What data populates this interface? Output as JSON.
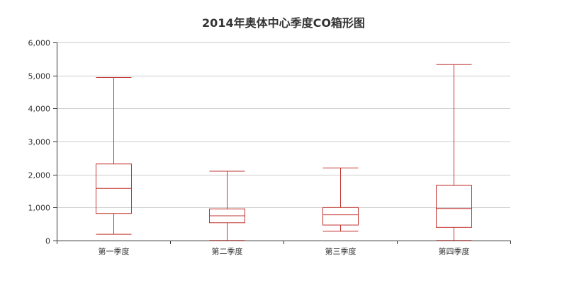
{
  "chart_data": {
    "type": "boxplot",
    "title": "2014年奥体中心季度CO箱形图",
    "categories": [
      "第一季度",
      "第二季度",
      "第三季度",
      "第四季度"
    ],
    "series": [
      {
        "values": [
          {
            "min": 190,
            "q1": 820,
            "median": 1580,
            "q3": 2320,
            "max": 4940
          },
          {
            "min": 0,
            "q1": 540,
            "median": 750,
            "q3": 960,
            "max": 2100
          },
          {
            "min": 280,
            "q1": 470,
            "median": 780,
            "q3": 1000,
            "max": 2200
          },
          {
            "min": 0,
            "q1": 400,
            "median": 970,
            "q3": 1670,
            "max": 5330
          }
        ]
      }
    ],
    "ylim": [
      0,
      6000
    ],
    "yticks": [
      0,
      1000,
      2000,
      3000,
      4000,
      5000,
      6000
    ],
    "ytick_labels": [
      "0",
      "1,000",
      "2,000",
      "3,000",
      "4,000",
      "5,000",
      "6,000"
    ],
    "grid": true,
    "box_color": "#c23531",
    "xlabel": "",
    "ylabel": ""
  }
}
